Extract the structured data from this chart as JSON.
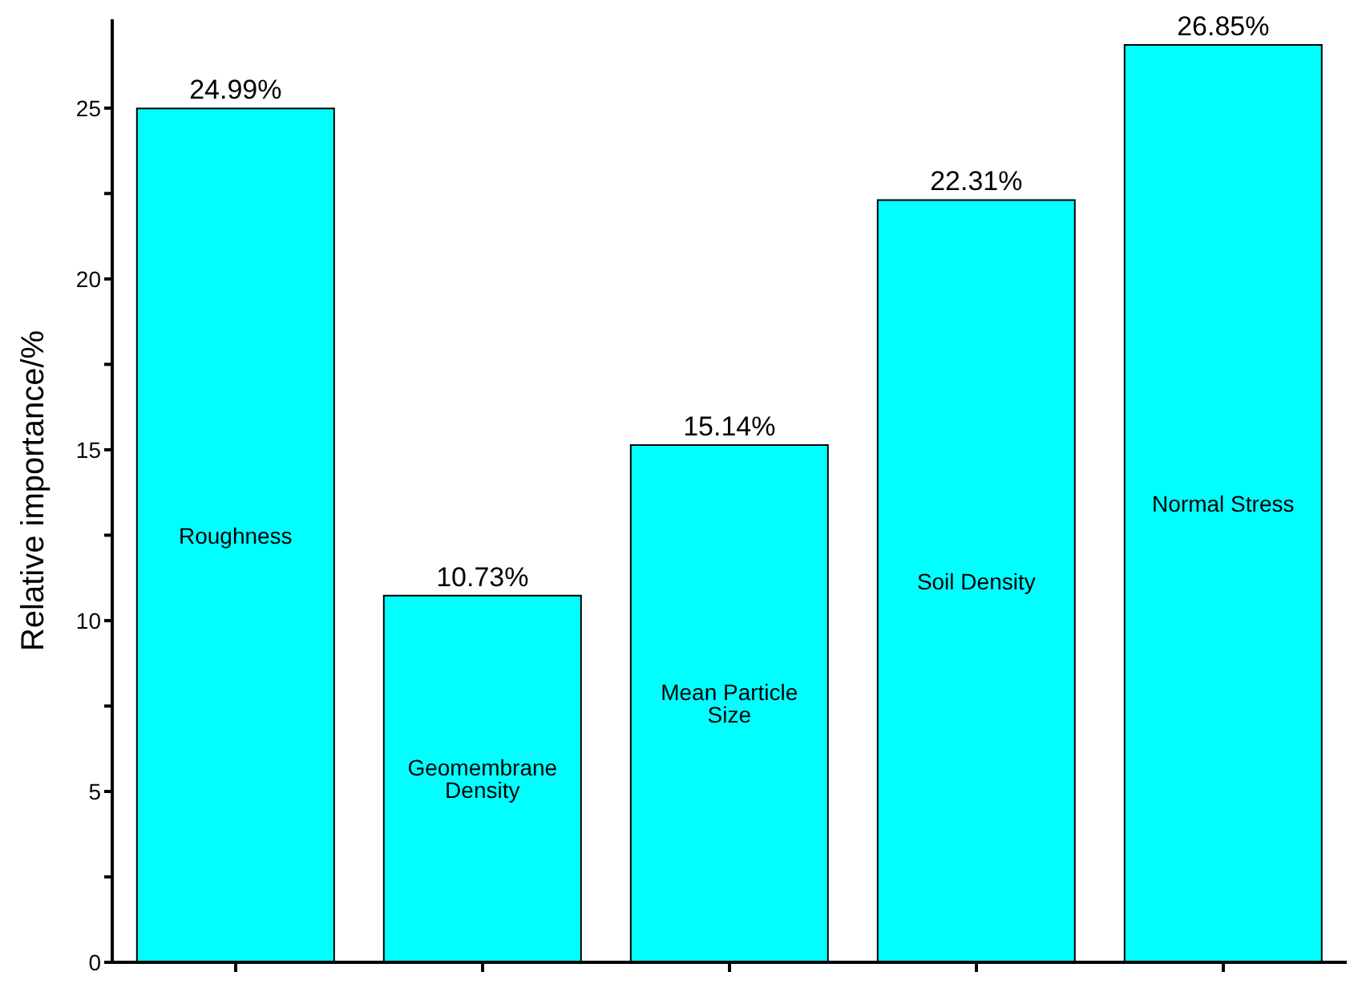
{
  "chart_data": {
    "type": "bar",
    "ylabel": "Relative importance/%",
    "categories": [
      "Roughness",
      "Geomembrane Density",
      "Mean Particle Size",
      "Soil Density",
      "Normal Stress"
    ],
    "values": [
      24.99,
      10.73,
      15.14,
      22.31,
      26.85
    ],
    "value_labels": [
      "24.99%",
      "10.73%",
      "15.14%",
      "22.31%",
      "26.85%"
    ],
    "color": "#00ffff",
    "ylim": [
      0,
      27.6
    ],
    "yticks": [
      0,
      {
        "value": 2.5,
        "label": null
      },
      5,
      {
        "value": 7.5,
        "label": null
      },
      10,
      {
        "value": 12.5,
        "label": null
      },
      15,
      {
        "value": 17.5,
        "label": null
      },
      20,
      {
        "value": 22.5,
        "label": null
      },
      25
    ],
    "tick_labels": "y",
    "grid": false,
    "legend": false
  }
}
